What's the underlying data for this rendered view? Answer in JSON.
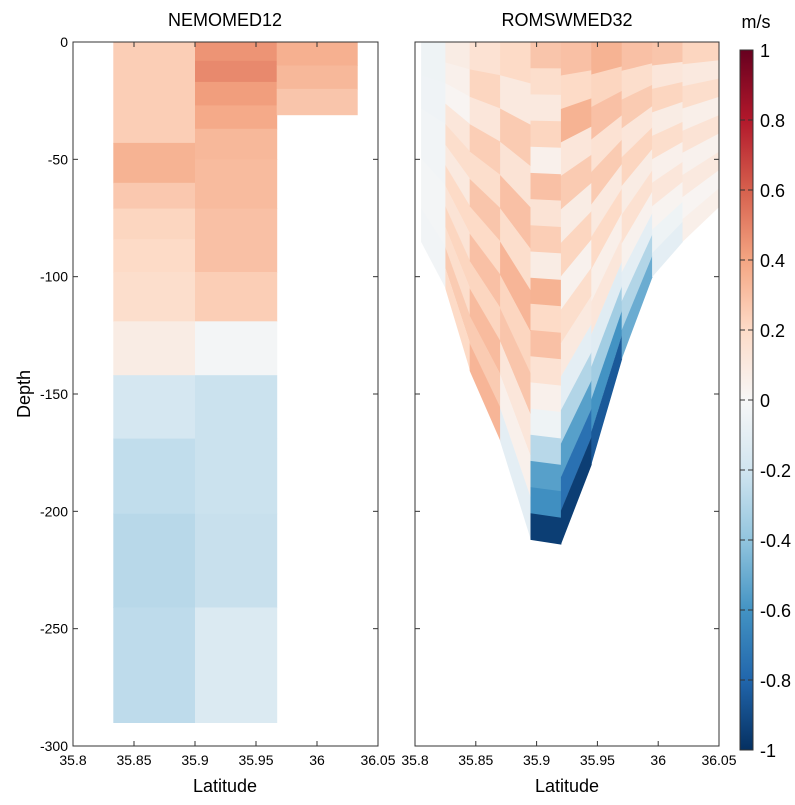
{
  "chart_data": [
    {
      "type": "heatmap",
      "title": "NEMOMED12",
      "xlabel": "Latitude",
      "ylabel": "Depth",
      "xlim": [
        35.8,
        36.05
      ],
      "ylim": [
        -300,
        0
      ],
      "xticks": [
        "35.8",
        "35.85",
        "35.9",
        "35.95",
        "36",
        "36.05"
      ],
      "yticks": [
        "0",
        "-50",
        "-100",
        "-150",
        "-200",
        "-250",
        "-300"
      ],
      "columns": [
        {
          "lat_range": [
            35.833,
            35.9
          ],
          "cells": [
            {
              "top": 0,
              "bottom": -43,
              "value": 0.25
            },
            {
              "top": -43,
              "bottom": -60,
              "value": 0.35
            },
            {
              "top": -60,
              "bottom": -71,
              "value": 0.27
            },
            {
              "top": -71,
              "bottom": -84,
              "value": 0.22
            },
            {
              "top": -84,
              "bottom": -98,
              "value": 0.2
            },
            {
              "top": -98,
              "bottom": -119,
              "value": 0.18
            },
            {
              "top": -119,
              "bottom": -142,
              "value": 0.08
            },
            {
              "top": -142,
              "bottom": -169,
              "value": -0.18
            },
            {
              "top": -169,
              "bottom": -201,
              "value": -0.25
            },
            {
              "top": -201,
              "bottom": -241,
              "value": -0.28
            },
            {
              "top": -241,
              "bottom": -290,
              "value": -0.26
            }
          ]
        },
        {
          "lat_range": [
            35.9,
            35.967
          ],
          "cells": [
            {
              "top": 0,
              "bottom": -8,
              "value": 0.45
            },
            {
              "top": -8,
              "bottom": -17,
              "value": 0.48
            },
            {
              "top": -17,
              "bottom": -27,
              "value": 0.42
            },
            {
              "top": -27,
              "bottom": -37,
              "value": 0.38
            },
            {
              "top": -37,
              "bottom": -50,
              "value": 0.33
            },
            {
              "top": -50,
              "bottom": -71,
              "value": 0.32
            },
            {
              "top": -71,
              "bottom": -98,
              "value": 0.3
            },
            {
              "top": -98,
              "bottom": -119,
              "value": 0.25
            },
            {
              "top": -119,
              "bottom": -142,
              "value": -0.02
            },
            {
              "top": -142,
              "bottom": -169,
              "value": -0.22
            },
            {
              "top": -169,
              "bottom": -201,
              "value": -0.22
            },
            {
              "top": -201,
              "bottom": -241,
              "value": -0.23
            },
            {
              "top": -241,
              "bottom": -290,
              "value": -0.15
            }
          ]
        },
        {
          "lat_range": [
            35.967,
            36.033
          ],
          "cells": [
            {
              "top": 0,
              "bottom": -10,
              "value": 0.36
            },
            {
              "top": -10,
              "bottom": -20,
              "value": 0.33
            },
            {
              "top": -20,
              "bottom": -31,
              "value": 0.28
            }
          ]
        }
      ]
    },
    {
      "type": "heatmap",
      "title": "ROMSWMED32",
      "xlabel": "Latitude",
      "ylabel": "",
      "xlim": [
        35.8,
        36.05
      ],
      "ylim": [
        -300,
        0
      ],
      "xticks": [
        "35.8",
        "35.85",
        "35.9",
        "35.95",
        "36",
        "36.05"
      ],
      "columns": [
        {
          "lat": [
            35.805,
            35.825
          ],
          "bottom": [
            -85,
            -105
          ],
          "values": [
            -0.05,
            -0.05,
            -0.04,
            -0.04,
            -0.03,
            -0.03,
            -0.03,
            -0.02,
            -0.02,
            -0.02,
            -0.03,
            -0.03
          ]
        },
        {
          "lat": [
            35.825,
            35.845
          ],
          "bottom": [
            -105,
            -140
          ],
          "values": [
            0.08,
            0.05,
            0.02,
            0.12,
            0.18,
            0.1,
            0.2,
            0.14,
            0.22,
            0.18,
            0.26,
            0.2
          ]
        },
        {
          "lat": [
            35.845,
            35.87
          ],
          "bottom": [
            -140,
            -170
          ],
          "values": [
            0.15,
            0.22,
            0.12,
            0.25,
            0.18,
            0.28,
            0.2,
            0.3,
            0.22,
            0.32,
            0.26,
            0.34
          ]
        },
        {
          "lat": [
            35.87,
            35.895
          ],
          "bottom": [
            -170,
            -212
          ],
          "values": [
            0.2,
            0.1,
            0.26,
            0.14,
            0.3,
            0.18,
            0.34,
            0.22,
            0.28,
            0.12,
            0.05,
            -0.1
          ]
        },
        {
          "lat": [
            35.895,
            35.92
          ],
          "bottom": [
            -212,
            -214
          ],
          "values": [
            0.28,
            0.18,
            0.1,
            0.22,
            0.05,
            0.3,
            0.14,
            0.25,
            0.08,
            0.35,
            0.2,
            0.3,
            0.15,
            0.05,
            -0.05,
            -0.28,
            -0.55,
            -0.62,
            -0.95
          ]
        },
        {
          "lat": [
            35.92,
            35.945
          ],
          "bottom": [
            -214,
            -180
          ],
          "values": [
            0.3,
            0.2,
            0.35,
            0.12,
            0.26,
            0.08,
            0.22,
            0.04,
            0.18,
            0.1,
            -0.1,
            -0.3,
            -0.55,
            -0.75,
            -0.95
          ]
        },
        {
          "lat": [
            35.945,
            35.97
          ],
          "bottom": [
            -180,
            -135
          ],
          "values": [
            0.35,
            0.22,
            0.3,
            0.15,
            0.26,
            0.1,
            0.2,
            0.06,
            0.12,
            -0.12,
            -0.35,
            -0.6,
            -0.85
          ]
        },
        {
          "lat": [
            35.97,
            35.995
          ],
          "bottom": [
            -135,
            -100
          ],
          "values": [
            0.3,
            0.18,
            0.26,
            0.12,
            0.22,
            0.08,
            0.16,
            0.04,
            -0.1,
            -0.3,
            -0.5
          ]
        },
        {
          "lat": [
            35.995,
            36.02
          ],
          "bottom": [
            -100,
            -85
          ],
          "values": [
            0.28,
            0.12,
            0.22,
            0.08,
            0.18,
            0.05,
            0.12,
            0.03,
            -0.05,
            -0.1
          ]
        },
        {
          "lat": [
            36.02,
            36.05
          ],
          "bottom": [
            -85,
            -70
          ],
          "values": [
            0.22,
            0.1,
            0.18,
            0.06,
            0.14,
            0.04,
            0.1,
            0.02,
            0.06
          ]
        }
      ]
    }
  ],
  "colorbar": {
    "unit": "m/s",
    "min": -1,
    "max": 1,
    "ticks": [
      "1",
      "0.8",
      "0.6",
      "0.4",
      "0.2",
      "0",
      "-0.2",
      "-0.4",
      "-0.6",
      "-0.8",
      "-1"
    ],
    "colormap": [
      "#053061",
      "#2166ac",
      "#4393c3",
      "#92c5de",
      "#d1e5f0",
      "#f7f7f7",
      "#fddbc7",
      "#f4a582",
      "#d6604d",
      "#b2182b",
      "#67001f"
    ]
  }
}
